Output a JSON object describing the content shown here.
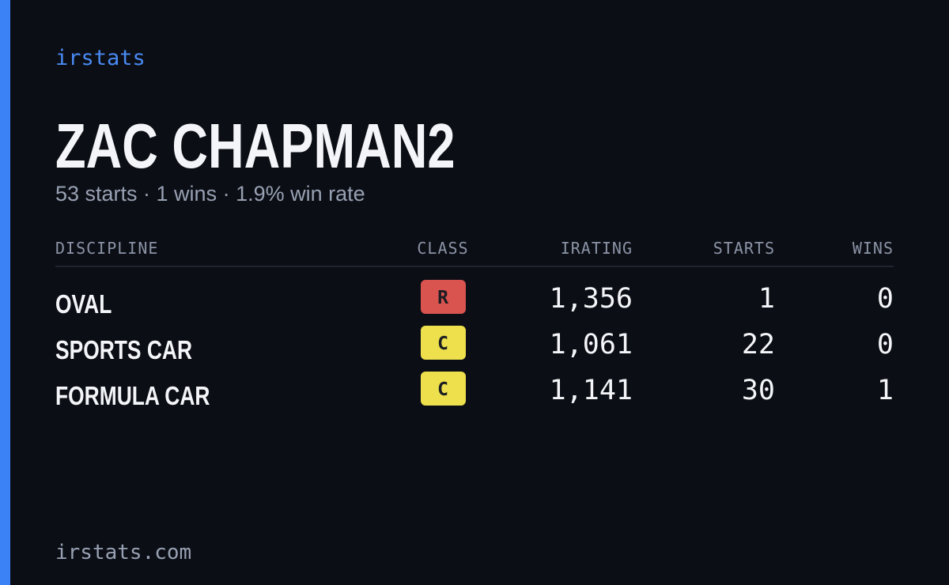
{
  "header": {
    "brand": "irstats",
    "name": "ZAC CHAPMAN2",
    "summary": "53 starts · 1 wins · 1.9% win rate"
  },
  "table": {
    "columns": [
      "DISCIPLINE",
      "CLASS",
      "IRATING",
      "STARTS",
      "WINS"
    ],
    "rows": [
      {
        "discipline": "OVAL",
        "class": "R",
        "class_color": "#d9534f",
        "irating": "1,356",
        "starts": 1,
        "wins": 0
      },
      {
        "discipline": "SPORTS CAR",
        "class": "C",
        "class_color": "#ede04c",
        "irating": "1,061",
        "starts": 22,
        "wins": 0
      },
      {
        "discipline": "FORMULA CAR",
        "class": "C",
        "class_color": "#ede04c",
        "irating": "1,141",
        "starts": 30,
        "wins": 1
      }
    ]
  },
  "footer": {
    "site": "irstats.com"
  }
}
